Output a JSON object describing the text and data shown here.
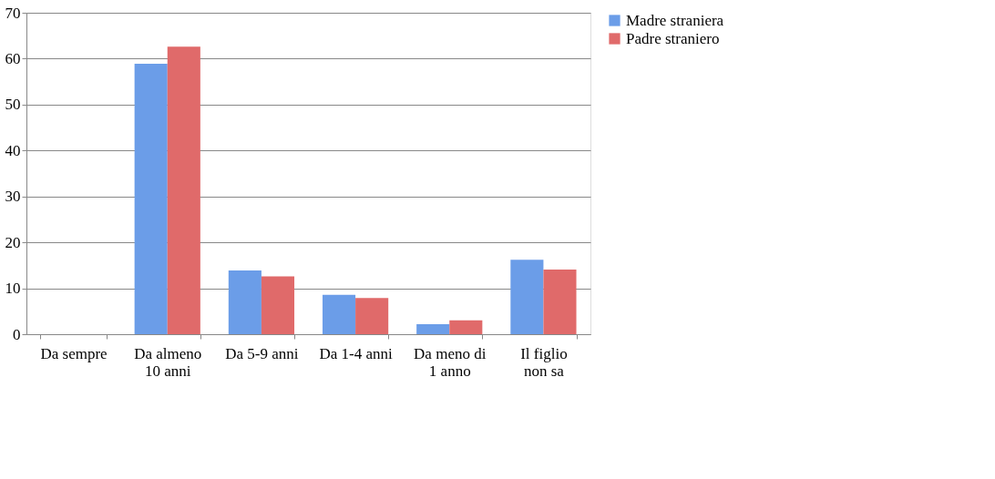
{
  "chart_data": {
    "type": "bar",
    "categories": [
      "Da sempre",
      "Da almeno 10 anni",
      "Da 5-9 anni",
      "Da 1-4 anni",
      "Da meno di 1 anno",
      "Il figlio non sa"
    ],
    "series": [
      {
        "name": "Madre straniera",
        "color": "#6b9de8",
        "values": [
          0,
          58.9,
          13.9,
          8.6,
          2.2,
          16.2
        ]
      },
      {
        "name": "Padre straniero",
        "color": "#e06a6a",
        "values": [
          0,
          62.6,
          12.6,
          7.9,
          3.0,
          14.1
        ]
      }
    ],
    "ylim": [
      0,
      70
    ],
    "yticks": [
      0,
      10,
      20,
      30,
      40,
      50,
      60,
      70
    ],
    "grid": "y",
    "legend": "right"
  }
}
